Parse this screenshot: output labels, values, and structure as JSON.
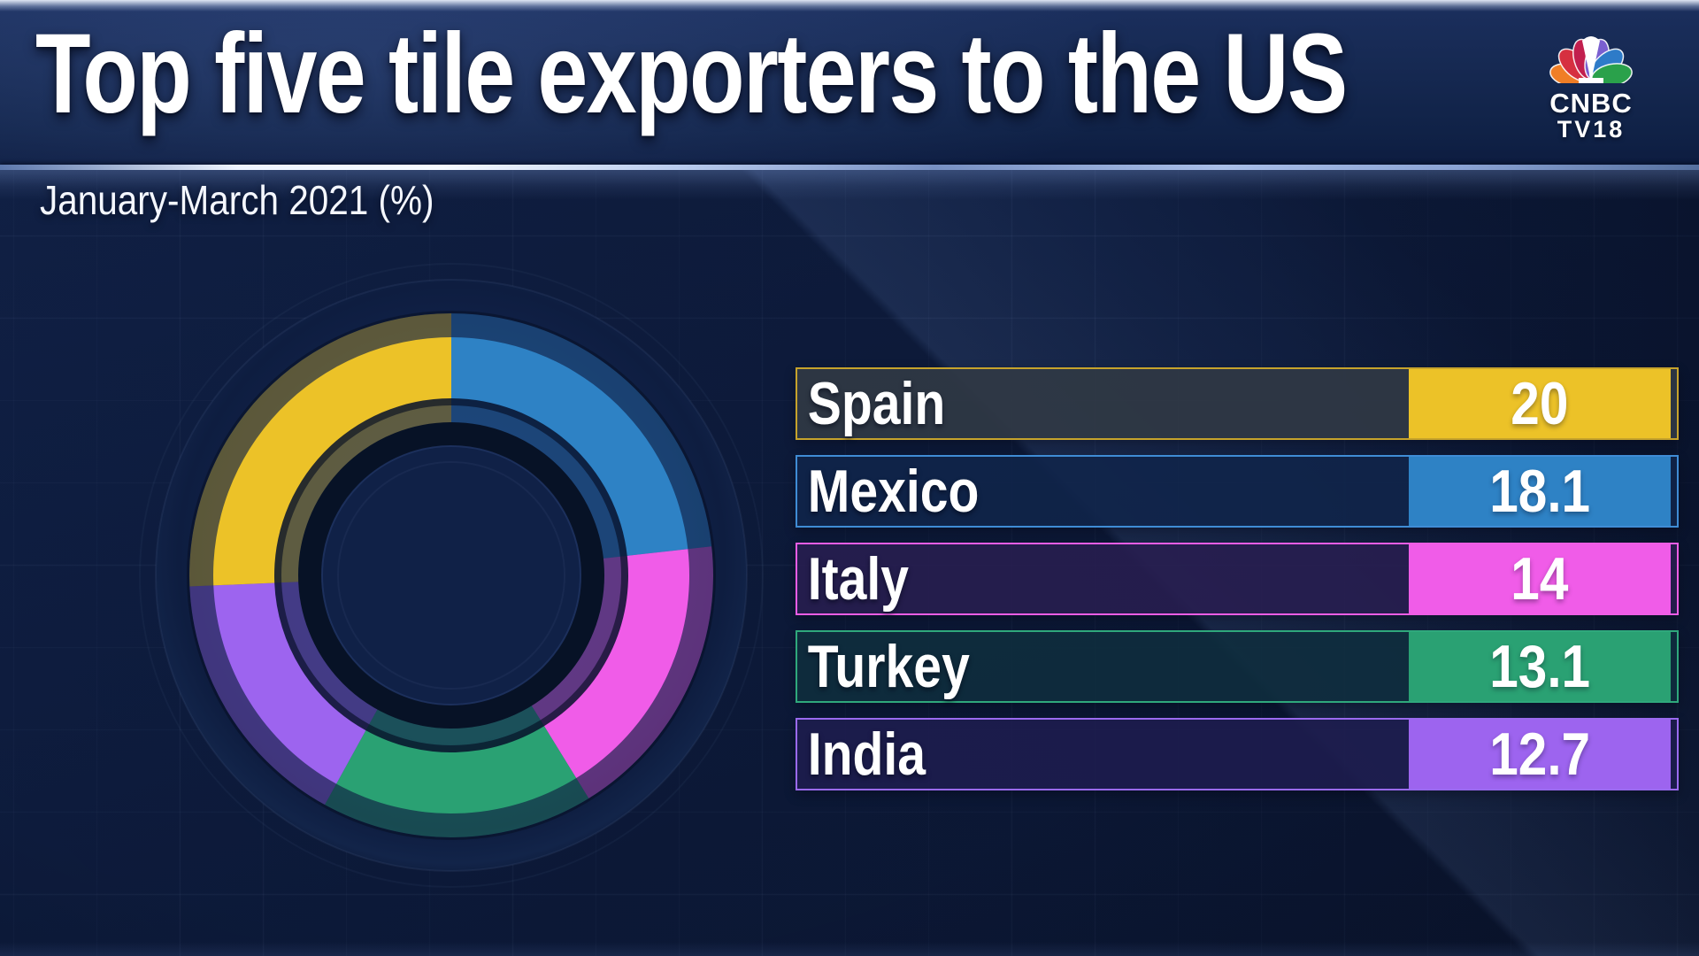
{
  "header": {
    "title": "Top five tile exporters to the US",
    "subtitle": "January-March 2021 (%)",
    "logo": {
      "line1": "CNBC",
      "line2": "TV18"
    }
  },
  "chart_data": {
    "type": "pie",
    "subtype": "donut",
    "title": "Top five tile exporters to the US",
    "subtitle": "January-March 2021 (%)",
    "unit": "%",
    "categories": [
      "Spain",
      "Mexico",
      "Italy",
      "Turkey",
      "India"
    ],
    "values": [
      20,
      18.1,
      14,
      13.1,
      12.7
    ],
    "donut_order_clockwise_from_top": [
      "Mexico",
      "Italy",
      "Turkey",
      "India",
      "Spain"
    ],
    "legend_position": "right",
    "colors": {
      "Spain": "#ecc228",
      "Mexico": "#2e82c5",
      "Italy": "#f05ce8",
      "Turkey": "#2aa173",
      "India": "#9d64ef"
    }
  },
  "legend": {
    "rows": [
      {
        "label": "Spain",
        "value": "20",
        "color": "#ecc228",
        "border": "#c6a32c",
        "tint": "rgba(48,56,68,0.92)"
      },
      {
        "label": "Mexico",
        "value": "18.1",
        "color": "#2e82c5",
        "border": "#3f8cd5",
        "tint": "rgba(16,36,74,0.88)"
      },
      {
        "label": "Italy",
        "value": "14",
        "color": "#f05ce8",
        "border": "#ee5de5",
        "tint": "rgba(40,30,80,0.88)"
      },
      {
        "label": "Turkey",
        "value": "13.1",
        "color": "#2aa173",
        "border": "#2fa87c",
        "tint": "rgba(15,45,62,0.88)"
      },
      {
        "label": "India",
        "value": "12.7",
        "color": "#9d64ef",
        "border": "#9a6aef",
        "tint": "rgba(30,28,78,0.88)"
      }
    ]
  },
  "peacock": {
    "petal_colors": [
      "#f07e26",
      "#d63040",
      "#c21f4e",
      "#7a5fd0",
      "#2e7bc8",
      "#2aa14b"
    ],
    "body_color": "#ffffff"
  },
  "donut_style": {
    "background_navy": "#0d1b3c",
    "hole_fill": "#102147",
    "dark_ring": "#071226",
    "dim_opacity": 0.35
  }
}
